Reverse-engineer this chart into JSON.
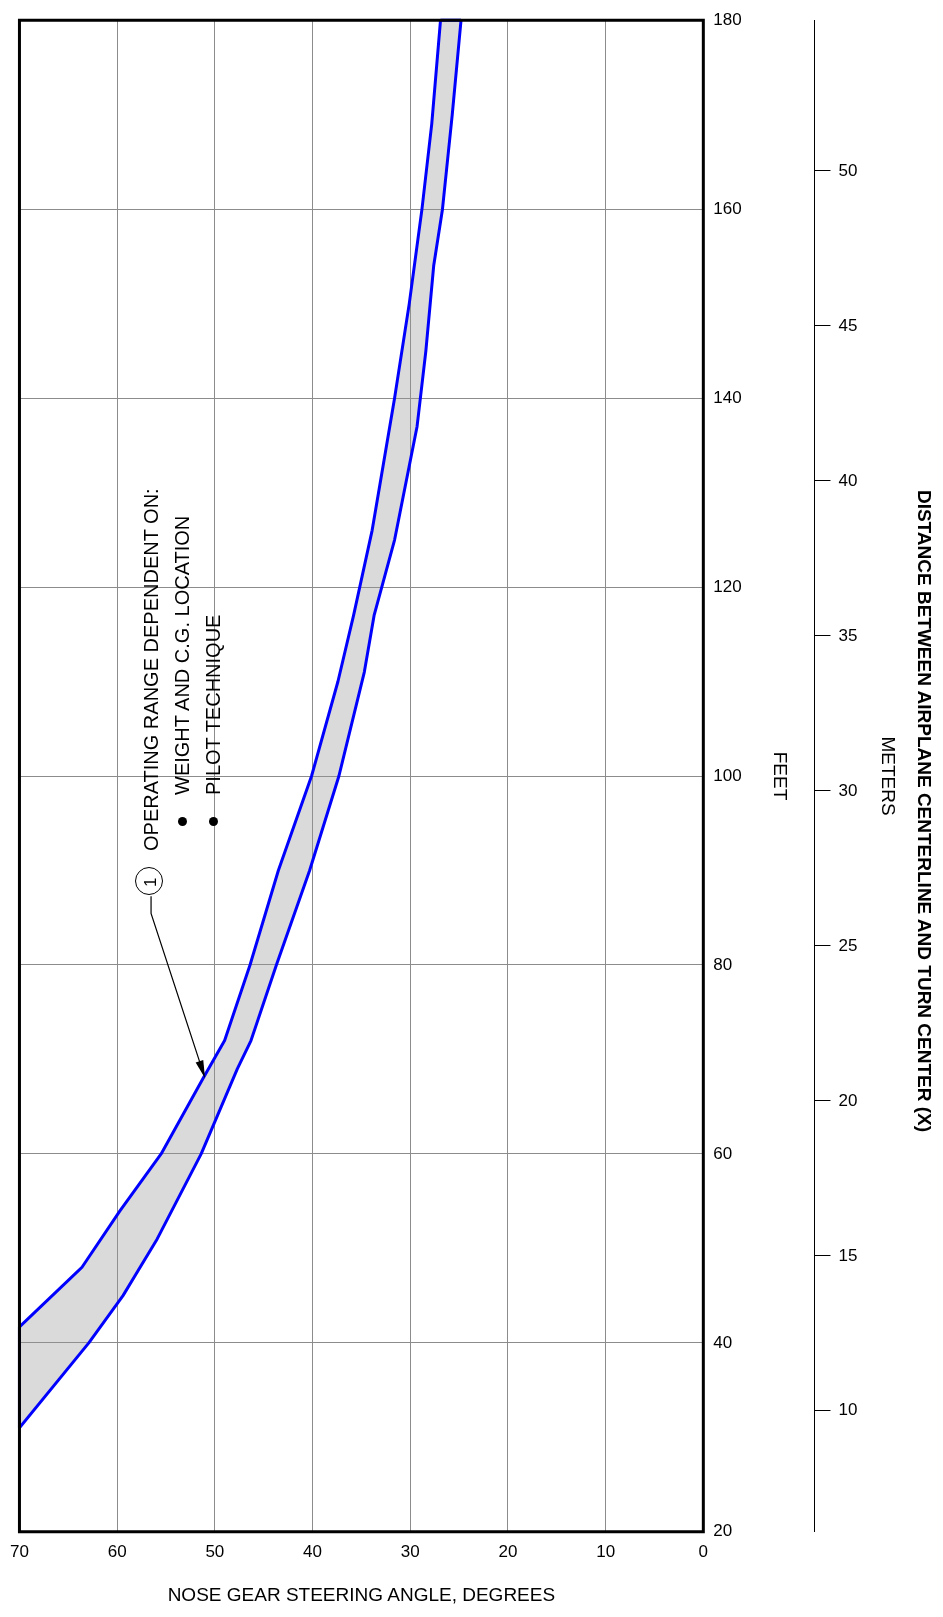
{
  "chart_data": {
    "type": "line",
    "title": "DISTANCE BETWEEN AIRPLANE CENTERLINE AND TURN CENTER (X)",
    "xlabel": "NOSE GEAR STEERING ANGLE, DEGREES",
    "ylabel": "FEET",
    "y2label": "METERS",
    "xlim": [
      70,
      0
    ],
    "xticks": [
      70,
      60,
      50,
      40,
      30,
      20,
      10,
      0
    ],
    "ylim": [
      20,
      180
    ],
    "yticks": [
      20,
      40,
      60,
      80,
      100,
      120,
      140,
      160,
      180
    ],
    "y2lim": [
      6.096,
      54.864
    ],
    "y2ticks": [
      10,
      15,
      20,
      25,
      30,
      35,
      40,
      45,
      50
    ],
    "grid": true,
    "series": [
      {
        "color": "#0000ff",
        "values": [
          41.7,
          48,
          54,
          60,
          68,
          72,
          80,
          90,
          100,
          110,
          117,
          126,
          140,
          150,
          160,
          169,
          180
        ],
        "x": [
          70,
          63.6,
          59.7,
          55.5,
          51.2,
          49,
          46.4,
          43.5,
          40.1,
          37.4,
          35.8,
          33.9,
          31.6,
          30.1,
          28.8,
          27.8,
          26.9
        ]
      },
      {
        "color": "#0000ff",
        "values": [
          31,
          40,
          45,
          51,
          60,
          69,
          72,
          80,
          90,
          100,
          111,
          117,
          125,
          137,
          145,
          154,
          160,
          170,
          180
        ],
        "x": [
          70,
          62.9,
          59.4,
          55.9,
          51.4,
          47.7,
          46.3,
          43.7,
          40.3,
          37.3,
          34.7,
          33.7,
          31.6,
          29.3,
          28.4,
          27.6,
          26.7,
          25.7,
          24.8
        ]
      }
    ],
    "annotations": [
      "1",
      "OPERATING RANGE DEPENDENT ON:",
      "WEIGHT AND C.G. LOCATION",
      "PILOT TECHNIQUE"
    ]
  }
}
